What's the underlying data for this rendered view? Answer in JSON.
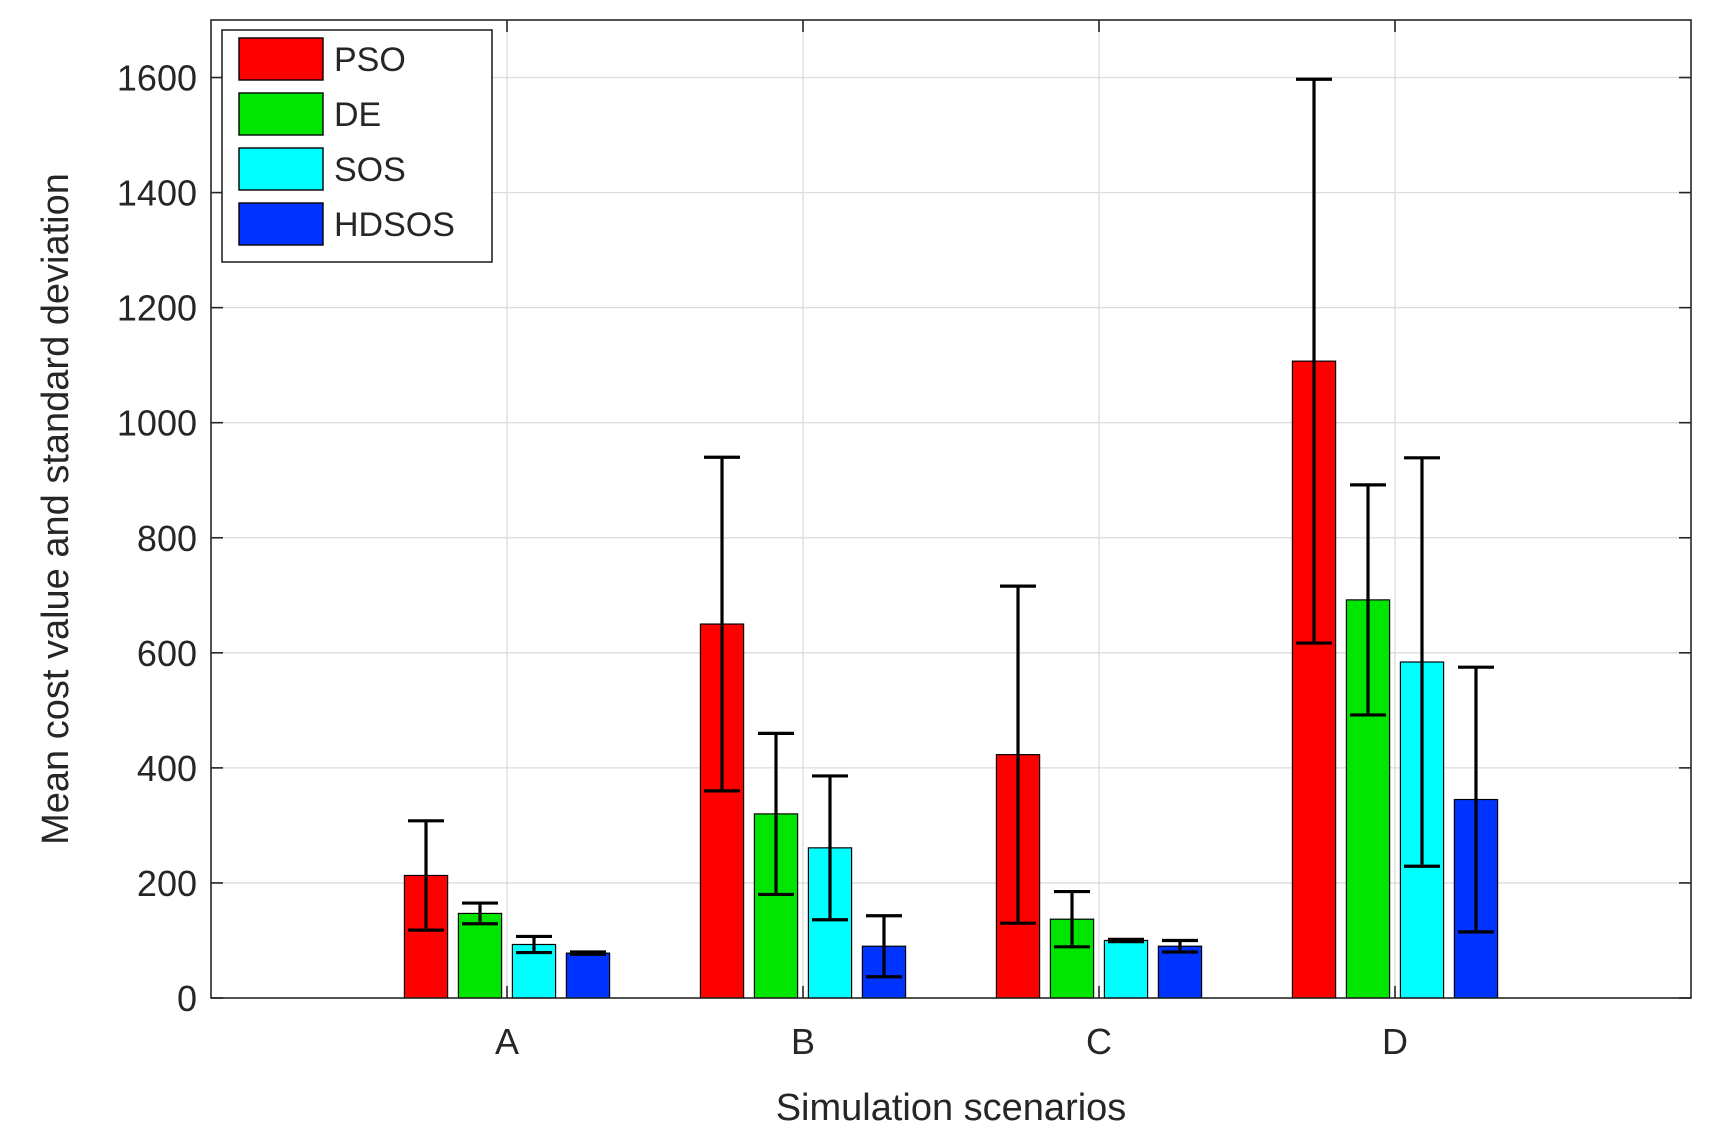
{
  "chart_data": {
    "type": "bar",
    "title": "",
    "xlabel": "Simulation scenarios",
    "ylabel": "Mean cost value and standard deviation",
    "ylim": [
      0,
      1700
    ],
    "yticks": [
      0,
      200,
      400,
      600,
      800,
      1000,
      1200,
      1400,
      1600
    ],
    "categories": [
      "A",
      "B",
      "C",
      "D"
    ],
    "grid": true,
    "legend_position": "top-left",
    "series": [
      {
        "name": "PSO",
        "color": "#ff0000",
        "values": [
          213,
          650,
          423,
          1107
        ],
        "errors": [
          95,
          290,
          293,
          490
        ]
      },
      {
        "name": "DE",
        "color": "#00e600",
        "values": [
          147,
          320,
          137,
          692
        ],
        "errors": [
          18,
          140,
          48,
          200
        ]
      },
      {
        "name": "SOS",
        "color": "#00ffff",
        "values": [
          93,
          261,
          100,
          584
        ],
        "errors": [
          14,
          125,
          2,
          355
        ]
      },
      {
        "name": "HDSOS",
        "color": "#0033ff",
        "values": [
          78,
          90,
          90,
          345
        ],
        "errors": [
          2,
          53,
          10,
          230
        ]
      }
    ]
  }
}
